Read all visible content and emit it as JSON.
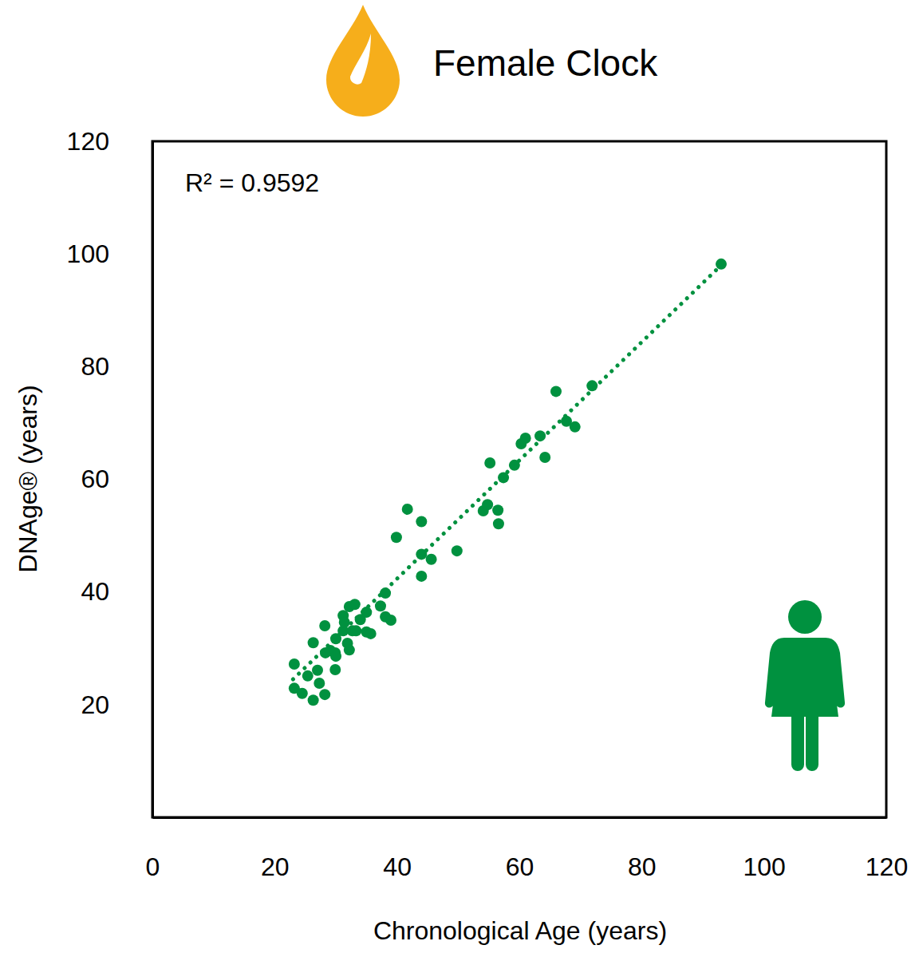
{
  "chart_data": {
    "type": "scatter",
    "title": "Female Clock",
    "x_label": "Chronological Age (years)",
    "y_label": "DNAge® (years)",
    "annotation": "R² = 0.9592",
    "xlim": [
      0,
      120
    ],
    "xticks": [
      0,
      20,
      40,
      60,
      80,
      100,
      120
    ],
    "ylim": [
      0,
      120
    ],
    "yticks": [
      20,
      40,
      60,
      80,
      100,
      120
    ],
    "grid": false,
    "series": [
      {
        "type": "scatter",
        "color": "#00913f",
        "marker": "circle",
        "x": [
          23.2,
          23.2,
          24.5,
          25.4,
          26.3,
          26.3,
          27.0,
          27.3,
          28.2,
          28.2,
          28.3,
          29.1,
          29.9,
          29.9,
          30.0,
          30.0,
          31.2,
          31.2,
          31.4,
          31.9,
          32.2,
          32.2,
          32.7,
          33.1,
          33.3,
          34.0,
          35.0,
          35.0,
          35.7,
          37.3,
          38.1,
          38.1,
          39.0,
          39.9,
          41.7,
          44.0,
          44.0,
          44.0,
          45.6,
          49.8,
          54.1,
          54.8,
          55.2,
          56.5,
          56.6,
          57.4,
          59.2,
          60.3,
          61.0,
          63.4,
          64.2,
          66.0,
          67.7,
          69.1,
          71.9,
          93.0
        ],
        "values": [
          27.2,
          22.9,
          22.0,
          25.1,
          31.0,
          20.8,
          26.1,
          23.8,
          34.0,
          21.8,
          29.2,
          29.6,
          26.2,
          29.2,
          31.7,
          28.6,
          35.8,
          33.1,
          34.6,
          30.9,
          29.7,
          37.4,
          33.1,
          37.8,
          33.1,
          35.1,
          36.4,
          32.9,
          32.6,
          37.5,
          39.8,
          35.6,
          35.0,
          49.7,
          54.7,
          52.5,
          46.7,
          42.8,
          45.8,
          47.3,
          54.4,
          55.5,
          62.9,
          54.5,
          52.1,
          60.3,
          62.5,
          66.3,
          67.3,
          67.7,
          63.9,
          75.6,
          70.3,
          69.3,
          76.6,
          98.2
        ]
      },
      {
        "type": "line",
        "color": "#00913f",
        "line_style": "dotted",
        "x": [
          23,
          93
        ],
        "values": [
          24.5,
          98.0
        ]
      }
    ]
  }
}
